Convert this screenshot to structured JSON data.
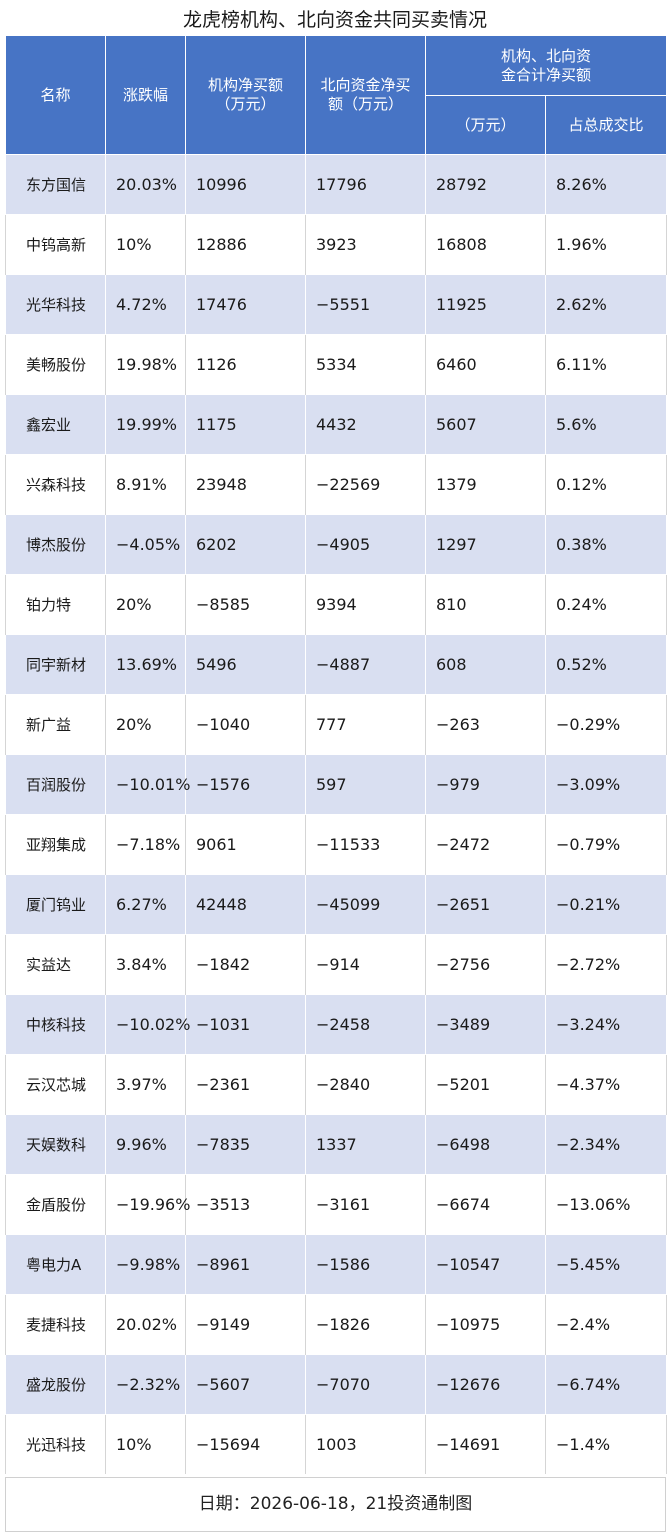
{
  "title": "龙虎榜机构、北向资金共同买卖情况",
  "headers": {
    "name": "名称",
    "change": "涨跌幅",
    "inst": "机构净买额（万元）",
    "north": "北向资金净买额（万元）",
    "combined_group": "机构、北向资金合计净买额",
    "combined_amount": "（万元）",
    "combined_ratio": "占总成交比"
  },
  "rows": [
    {
      "name": "东方国信",
      "change": "20.03%",
      "inst": "10996",
      "north": "17796",
      "total": "28792",
      "ratio": "8.26%"
    },
    {
      "name": "中钨高新",
      "change": "10%",
      "inst": "12886",
      "north": "3923",
      "total": "16808",
      "ratio": "1.96%"
    },
    {
      "name": "光华科技",
      "change": "4.72%",
      "inst": "17476",
      "north": "−5551",
      "total": "11925",
      "ratio": "2.62%"
    },
    {
      "name": "美畅股份",
      "change": "19.98%",
      "inst": "1126",
      "north": "5334",
      "total": "6460",
      "ratio": "6.11%"
    },
    {
      "name": "鑫宏业",
      "change": "19.99%",
      "inst": "1175",
      "north": "4432",
      "total": "5607",
      "ratio": "5.6%"
    },
    {
      "name": "兴森科技",
      "change": "8.91%",
      "inst": "23948",
      "north": "−22569",
      "total": "1379",
      "ratio": "0.12%"
    },
    {
      "name": "博杰股份",
      "change": "−4.05%",
      "inst": "6202",
      "north": "−4905",
      "total": "1297",
      "ratio": "0.38%"
    },
    {
      "name": "铂力特",
      "change": "20%",
      "inst": "−8585",
      "north": "9394",
      "total": "810",
      "ratio": "0.24%"
    },
    {
      "name": "同宇新材",
      "change": "13.69%",
      "inst": "5496",
      "north": "−4887",
      "total": "608",
      "ratio": "0.52%"
    },
    {
      "name": "新广益",
      "change": "20%",
      "inst": "−1040",
      "north": "777",
      "total": "−263",
      "ratio": "−0.29%"
    },
    {
      "name": "百润股份",
      "change": "−10.01%",
      "inst": "−1576",
      "north": "597",
      "total": "−979",
      "ratio": "−3.09%"
    },
    {
      "name": "亚翔集成",
      "change": "−7.18%",
      "inst": "9061",
      "north": "−11533",
      "total": "−2472",
      "ratio": "−0.79%"
    },
    {
      "name": "厦门钨业",
      "change": "6.27%",
      "inst": "42448",
      "north": "−45099",
      "total": "−2651",
      "ratio": "−0.21%"
    },
    {
      "name": "实益达",
      "change": "3.84%",
      "inst": "−1842",
      "north": "−914",
      "total": "−2756",
      "ratio": "−2.72%"
    },
    {
      "name": "中核科技",
      "change": "−10.02%",
      "inst": "−1031",
      "north": "−2458",
      "total": "−3489",
      "ratio": "−3.24%"
    },
    {
      "name": "云汉芯城",
      "change": "3.97%",
      "inst": "−2361",
      "north": "−2840",
      "total": "−5201",
      "ratio": "−4.37%"
    },
    {
      "name": "天娱数科",
      "change": "9.96%",
      "inst": "−7835",
      "north": "1337",
      "total": "−6498",
      "ratio": "−2.34%"
    },
    {
      "name": "金盾股份",
      "change": "−19.96%",
      "inst": "−3513",
      "north": "−3161",
      "total": "−6674",
      "ratio": "−13.06%"
    },
    {
      "name": "粤电力A",
      "change": "−9.98%",
      "inst": "−8961",
      "north": "−1586",
      "total": "−10547",
      "ratio": "−5.45%"
    },
    {
      "name": "麦捷科技",
      "change": "20.02%",
      "inst": "−9149",
      "north": "−1826",
      "total": "−10975",
      "ratio": "−2.4%"
    },
    {
      "name": "盛龙股份",
      "change": "−2.32%",
      "inst": "−5607",
      "north": "−7070",
      "total": "−12676",
      "ratio": "−6.74%"
    },
    {
      "name": "光迅科技",
      "change": "10%",
      "inst": "−15694",
      "north": "1003",
      "total": "−14691",
      "ratio": "−1.4%"
    }
  ],
  "footer": "日期：2026-06-18，21投资通制图",
  "colors": {
    "header_bg": "#4774c5",
    "stripe_bg": "#d9dff1"
  }
}
